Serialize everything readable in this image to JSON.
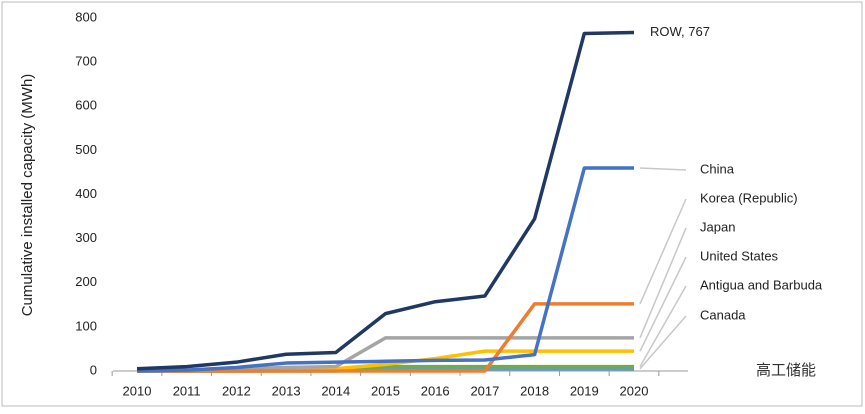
{
  "chart_data": {
    "type": "line",
    "y_label": "Cumulative installed capacity (MWh)",
    "categories": [
      "2010",
      "2011",
      "2012",
      "2013",
      "2014",
      "2015",
      "2016",
      "2017",
      "2018",
      "2019",
      "2020"
    ],
    "ylim": [
      0,
      800
    ],
    "yticks": [
      0,
      100,
      200,
      300,
      400,
      500,
      600,
      700,
      800
    ],
    "grid": false,
    "series": [
      {
        "name": "ROW",
        "color": "#1f3864",
        "end_label": "ROW, 767",
        "values": [
          5,
          10,
          20,
          38,
          42,
          130,
          157,
          170,
          345,
          765,
          767
        ]
      },
      {
        "name": "China",
        "color": "#4472c4",
        "values": [
          0,
          2,
          8,
          18,
          20,
          22,
          24,
          25,
          37,
          460,
          460
        ]
      },
      {
        "name": "Korea (Republic)",
        "color": "#ed7d31",
        "values": [
          0,
          0,
          0,
          0,
          0,
          0,
          0,
          0,
          152,
          152,
          152
        ]
      },
      {
        "name": "Japan",
        "color": "#a5a5a5",
        "values": [
          0,
          2,
          5,
          8,
          10,
          75,
          75,
          75,
          75,
          75,
          75
        ]
      },
      {
        "name": "United States",
        "color": "#ffc000",
        "values": [
          0,
          1,
          2,
          3,
          5,
          15,
          28,
          45,
          45,
          45,
          45
        ]
      },
      {
        "name": "Antigua and Barbuda",
        "color": "#70ad47",
        "values": [
          0,
          0,
          0,
          0,
          0,
          10,
          10,
          10,
          10,
          10,
          10
        ]
      },
      {
        "name": "Canada",
        "color": "#5b9bd5",
        "values": [
          0,
          0,
          0,
          1,
          2,
          4,
          5,
          5,
          5,
          5,
          5
        ]
      }
    ],
    "watermark": "高工储能"
  }
}
